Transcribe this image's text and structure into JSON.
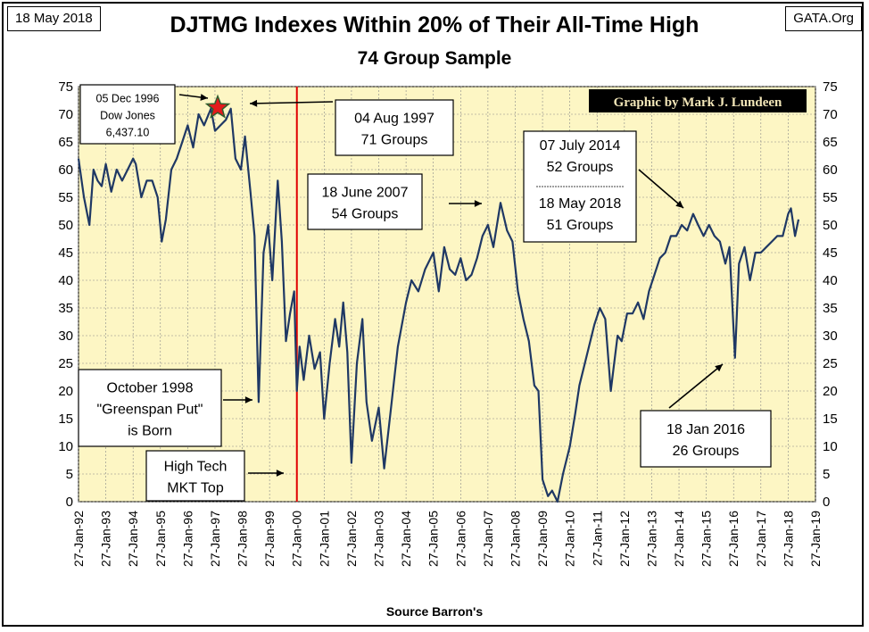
{
  "header": {
    "date": "18 May 2018",
    "source_site": "GATA.Org",
    "title": "DJTMG Indexes Within 20% of Their All-Time High",
    "subtitle": "74 Group Sample",
    "credit": "Graphic by Mark J. Lundeen",
    "xlabel": "Source Barron's"
  },
  "colors": {
    "plot_bg": "#fdf6c4",
    "line": "#1f3864",
    "vline": "#e00000",
    "star": "#e31a1c",
    "credit_bg": "#000000",
    "credit_text": "#f2e6b8"
  },
  "chart_data": {
    "type": "line",
    "title": "DJTMG Indexes Within 20% of Their All-Time High",
    "subtitle": "74 Group Sample",
    "xlabel": "Source Barron's",
    "ylabel": "",
    "ylim": [
      0,
      75
    ],
    "yticks": [
      0,
      5,
      10,
      15,
      20,
      25,
      30,
      35,
      40,
      45,
      50,
      55,
      60,
      65,
      70,
      75
    ],
    "xlim": [
      "1992-01-27",
      "2019-01-27"
    ],
    "xticks": [
      "27-Jan-92",
      "27-Jan-93",
      "27-Jan-94",
      "27-Jan-95",
      "27-Jan-96",
      "27-Jan-97",
      "27-Jan-98",
      "27-Jan-99",
      "27-Jan-00",
      "27-Jan-01",
      "27-Jan-02",
      "27-Jan-03",
      "27-Jan-04",
      "27-Jan-05",
      "27-Jan-06",
      "27-Jan-07",
      "27-Jan-08",
      "27-Jan-09",
      "27-Jan-10",
      "27-Jan-11",
      "27-Jan-12",
      "27-Jan-13",
      "27-Jan-14",
      "27-Jan-15",
      "27-Jan-16",
      "27-Jan-17",
      "27-Jan-18",
      "27-Jan-19"
    ],
    "grid": true,
    "vertical_marker_year": 2000.0,
    "series": [
      {
        "x": [
          1992.0,
          1992.2,
          1992.4,
          1992.55,
          1992.7,
          1992.85,
          1993.0,
          1993.2,
          1993.4,
          1993.6,
          1993.8,
          1994.0,
          1994.1,
          1994.3,
          1994.5,
          1994.7,
          1994.9,
          1995.05,
          1995.2,
          1995.4,
          1995.6,
          1995.8,
          1996.0,
          1996.2,
          1996.4,
          1996.6,
          1996.85,
          1997.0,
          1997.2,
          1997.4,
          1997.58,
          1997.75,
          1997.95,
          1998.1,
          1998.3,
          1998.45,
          1998.6,
          1998.78,
          1998.95,
          1999.1,
          1999.3,
          1999.45,
          1999.6,
          1999.75,
          1999.9,
          2000.0,
          2000.1,
          2000.25,
          2000.45,
          2000.65,
          2000.85,
          2001.0,
          2001.2,
          2001.4,
          2001.55,
          2001.7,
          2001.85,
          2002.0,
          2002.2,
          2002.4,
          2002.55,
          2002.75,
          2003.0,
          2003.2,
          2003.45,
          2003.7,
          2004.0,
          2004.2,
          2004.45,
          2004.7,
          2005.0,
          2005.2,
          2005.4,
          2005.6,
          2005.8,
          2006.0,
          2006.2,
          2006.4,
          2006.6,
          2006.8,
          2007.0,
          2007.2,
          2007.46,
          2007.7,
          2007.9,
          2008.1,
          2008.3,
          2008.5,
          2008.7,
          2008.85,
          2009.0,
          2009.2,
          2009.35,
          2009.55,
          2009.75,
          2010.0,
          2010.2,
          2010.35,
          2010.5,
          2010.7,
          2010.9,
          2011.1,
          2011.3,
          2011.5,
          2011.6,
          2011.75,
          2011.9,
          2012.1,
          2012.3,
          2012.5,
          2012.7,
          2012.9,
          2013.1,
          2013.3,
          2013.5,
          2013.7,
          2013.9,
          2014.1,
          2014.3,
          2014.52,
          2014.7,
          2014.9,
          2015.1,
          2015.3,
          2015.5,
          2015.7,
          2015.85,
          2016.05,
          2016.2,
          2016.4,
          2016.6,
          2016.8,
          2017.0,
          2017.2,
          2017.4,
          2017.6,
          2017.8,
          2018.0,
          2018.1,
          2018.25,
          2018.38
        ],
        "values": [
          62,
          55,
          50,
          60,
          58,
          57,
          61,
          56,
          60,
          58,
          60,
          62,
          61,
          55,
          58,
          58,
          55,
          47,
          51,
          60,
          62,
          65,
          68,
          64,
          70,
          68,
          71,
          67,
          68,
          69,
          71,
          62,
          60,
          66,
          56,
          48,
          18,
          45,
          50,
          40,
          58,
          47,
          29,
          34,
          38,
          20,
          28,
          22,
          30,
          24,
          27,
          15,
          25,
          33,
          28,
          36,
          27,
          7,
          25,
          33,
          18,
          11,
          17,
          6,
          17,
          28,
          36,
          40,
          38,
          42,
          45,
          38,
          46,
          42,
          41,
          44,
          40,
          41,
          44,
          48,
          50,
          46,
          54,
          49,
          47,
          38,
          33,
          29,
          21,
          20,
          4,
          1,
          2,
          0,
          5,
          10,
          16,
          21,
          24,
          28,
          32,
          35,
          33,
          20,
          24,
          30,
          29,
          34,
          34,
          36,
          33,
          38,
          41,
          44,
          45,
          48,
          48,
          50,
          49,
          52,
          50,
          48,
          50,
          48,
          47,
          43,
          46,
          26,
          43,
          46,
          40,
          45,
          45,
          46,
          47,
          48,
          48,
          52,
          53,
          48,
          51
        ]
      }
    ],
    "annotations": [
      {
        "key": "dow",
        "lines": [
          "05  Dec 1996",
          "Dow Jones",
          "6,437.10"
        ]
      },
      {
        "key": "aug1997",
        "lines": [
          "04 Aug 1997",
          "71 Groups"
        ]
      },
      {
        "key": "jun2007",
        "lines": [
          "18 June 2007",
          "54 Groups"
        ]
      },
      {
        "key": "jul2014",
        "lines": [
          "07 July 2014",
          "52 Groups"
        ],
        "lines2": [
          "18 May 2018",
          "51 Groups"
        ]
      },
      {
        "key": "oct1998",
        "lines": [
          "October 1998",
          "\"Greenspan Put\"",
          "is Born"
        ]
      },
      {
        "key": "hightech",
        "lines": [
          "High Tech",
          "MKT Top"
        ]
      },
      {
        "key": "jan2016",
        "lines": [
          "18 Jan 2016",
          "26 Groups"
        ]
      }
    ]
  }
}
